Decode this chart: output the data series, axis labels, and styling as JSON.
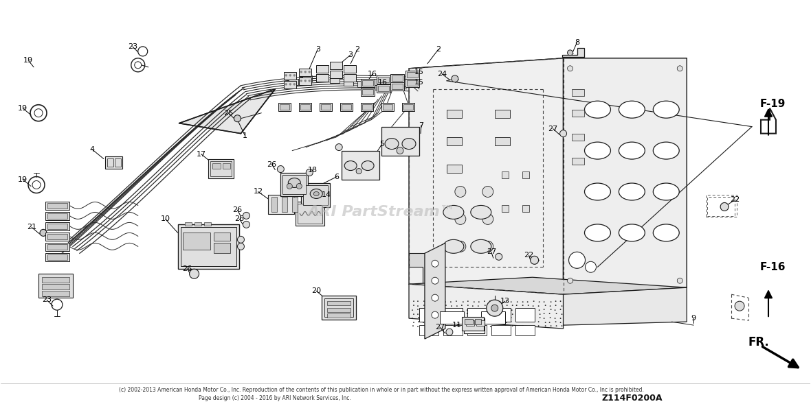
{
  "bg_color": "#ffffff",
  "watermark": "ARI PartStream™",
  "diagram_code": "Z114F0200A",
  "copyright": "(c) 2002-2013 American Honda Motor Co., Inc. Reproduction of the contents of this publication in whole or in part without the express written approval of American Honda Motor Co., Inc is prohibited.",
  "page_design": "Page design (c) 2004 - 2016 by ARI Network Services, Inc.",
  "lc": "#1a1a1a",
  "tc": "#000000",
  "wm_color": "#bbbbbb",
  "panel_fill": "#f5f5f5",
  "panel_edge": "#222222"
}
